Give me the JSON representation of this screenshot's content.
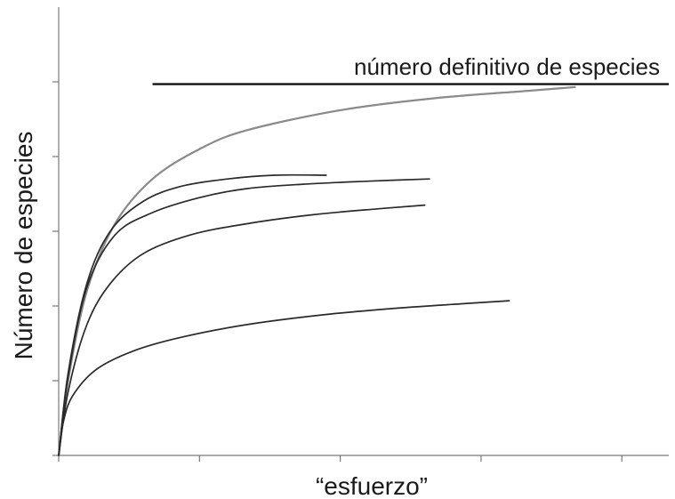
{
  "chart_data": {
    "type": "line",
    "title": "",
    "xlabel": "“esfuerzo”",
    "ylabel": "Número de especies",
    "xlim": [
      0,
      6.5
    ],
    "ylim": [
      0,
      6
    ],
    "x_ticks": [
      0,
      1.5,
      3,
      4.5,
      6
    ],
    "y_ticks": [
      0,
      1,
      2,
      3,
      4,
      5
    ],
    "grid": false,
    "legend": "none",
    "colors": {
      "reference": "#111111",
      "asymptote_curve": "#8a8a8a",
      "curves": "#2a2a2a"
    },
    "reference_line": {
      "label": "número definitivo de especies",
      "y": 4.97,
      "x_start": 1.0,
      "x_end": 6.5
    },
    "series": [
      {
        "values": [
          [
            0,
            0
          ],
          [
            0.1,
            1.0
          ],
          [
            0.3,
            2.2
          ],
          [
            0.6,
            3.1
          ],
          [
            1.0,
            3.7
          ],
          [
            1.5,
            4.1
          ],
          [
            2.0,
            4.35
          ],
          [
            3.0,
            4.62
          ],
          [
            4.0,
            4.78
          ],
          [
            5.0,
            4.88
          ],
          [
            5.5,
            4.93
          ]
        ]
      },
      {
        "values": [
          [
            0,
            0
          ],
          [
            0.1,
            1.1
          ],
          [
            0.3,
            2.3
          ],
          [
            0.55,
            3.0
          ],
          [
            0.9,
            3.4
          ],
          [
            1.3,
            3.6
          ],
          [
            1.8,
            3.7
          ],
          [
            2.3,
            3.75
          ],
          [
            2.85,
            3.75
          ]
        ]
      },
      {
        "values": [
          [
            0,
            0
          ],
          [
            0.1,
            1.05
          ],
          [
            0.3,
            2.25
          ],
          [
            0.6,
            2.95
          ],
          [
            1.0,
            3.25
          ],
          [
            1.5,
            3.45
          ],
          [
            2.0,
            3.57
          ],
          [
            2.6,
            3.63
          ],
          [
            3.3,
            3.67
          ],
          [
            3.95,
            3.7
          ]
        ]
      },
      {
        "values": [
          [
            0,
            0
          ],
          [
            0.1,
            0.85
          ],
          [
            0.3,
            1.75
          ],
          [
            0.55,
            2.3
          ],
          [
            0.9,
            2.7
          ],
          [
            1.4,
            2.95
          ],
          [
            2.0,
            3.1
          ],
          [
            2.7,
            3.22
          ],
          [
            3.4,
            3.3
          ],
          [
            3.9,
            3.35
          ]
        ]
      },
      {
        "values": [
          [
            0,
            0
          ],
          [
            0.05,
            0.45
          ],
          [
            0.15,
            0.8
          ],
          [
            0.4,
            1.15
          ],
          [
            0.8,
            1.4
          ],
          [
            1.3,
            1.58
          ],
          [
            2.0,
            1.75
          ],
          [
            2.8,
            1.88
          ],
          [
            3.6,
            1.97
          ],
          [
            4.3,
            2.03
          ],
          [
            4.8,
            2.07
          ]
        ]
      }
    ]
  }
}
